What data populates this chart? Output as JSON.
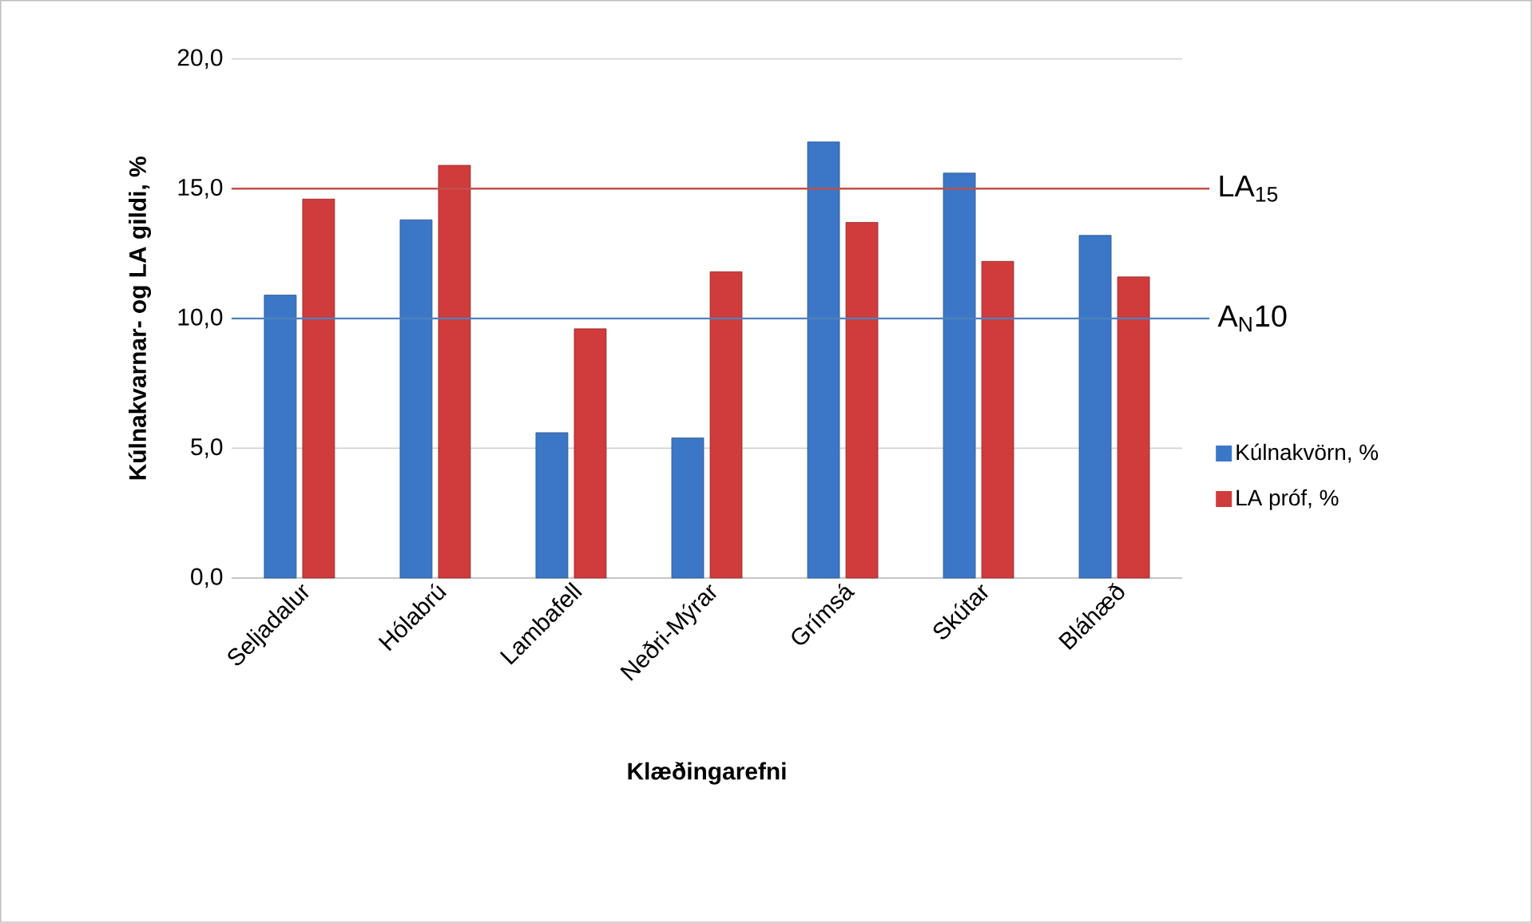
{
  "chart_data": {
    "type": "bar",
    "xlabel": "Klæðingarefni",
    "ylabel": "Kúlnakvarnar- og LA gildi, %",
    "categories": [
      "Seljadalur",
      "Hólabrú",
      "Lambafell",
      "Neðri-Mýrar",
      "Grímsá",
      "Skútar",
      "Bláhæð"
    ],
    "series": [
      {
        "name": "Kúlnakvörn, %",
        "color": "#3b77c6",
        "values": [
          10.9,
          13.8,
          5.6,
          5.4,
          16.8,
          15.6,
          13.2
        ]
      },
      {
        "name": "LA próf, %",
        "color": "#d03b3b",
        "values": [
          14.6,
          15.9,
          9.6,
          11.8,
          13.7,
          12.2,
          11.6
        ]
      }
    ],
    "ylim": [
      0,
      20
    ],
    "yticks": [
      {
        "value": 0,
        "label": "0,0"
      },
      {
        "value": 5,
        "label": "5,0"
      },
      {
        "value": 10,
        "label": "10,0"
      },
      {
        "value": 15,
        "label": "15,0"
      },
      {
        "value": 20,
        "label": "20,0"
      }
    ],
    "ref_lines": [
      {
        "axis": "y",
        "value": 15,
        "label": "LA$_{15}$",
        "color": "#c0504d"
      },
      {
        "axis": "y",
        "value": 10,
        "label": "A$_{N}$10",
        "color": "#4f81bd"
      }
    ],
    "grid": "y",
    "legend": "right"
  }
}
